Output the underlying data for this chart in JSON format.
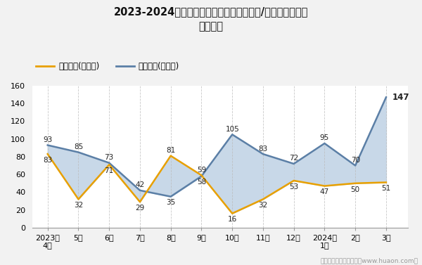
{
  "title_line1": "2023-2024年深圳科技工业园（境内目的地/货源地）进、出",
  "title_line2": "口额统计",
  "x_labels": [
    "2023年\n4月",
    "5月",
    "6月",
    "7月",
    "8月",
    "9月",
    "10月",
    "11月",
    "12月",
    "2024年\n1月",
    "2月",
    "3月"
  ],
  "export_values": [
    83,
    32,
    71,
    29,
    81,
    59,
    16,
    32,
    53,
    47,
    50,
    51
  ],
  "import_values": [
    93,
    85,
    73,
    42,
    35,
    58,
    105,
    83,
    72,
    95,
    70,
    147
  ],
  "export_label": "出口总额(万美元)",
  "import_label": "进口总额(万美元)",
  "export_color": "#E8A000",
  "import_color": "#5B7FA6",
  "fill_color": "#C8D8E8",
  "ylim": [
    0,
    160
  ],
  "yticks": [
    0,
    20,
    40,
    60,
    80,
    100,
    120,
    140,
    160
  ],
  "footer": "制图：华经产业研究院（www.huaon.com）",
  "bg_color": "#F2F2F2",
  "plot_bg_color": "#FFFFFF"
}
